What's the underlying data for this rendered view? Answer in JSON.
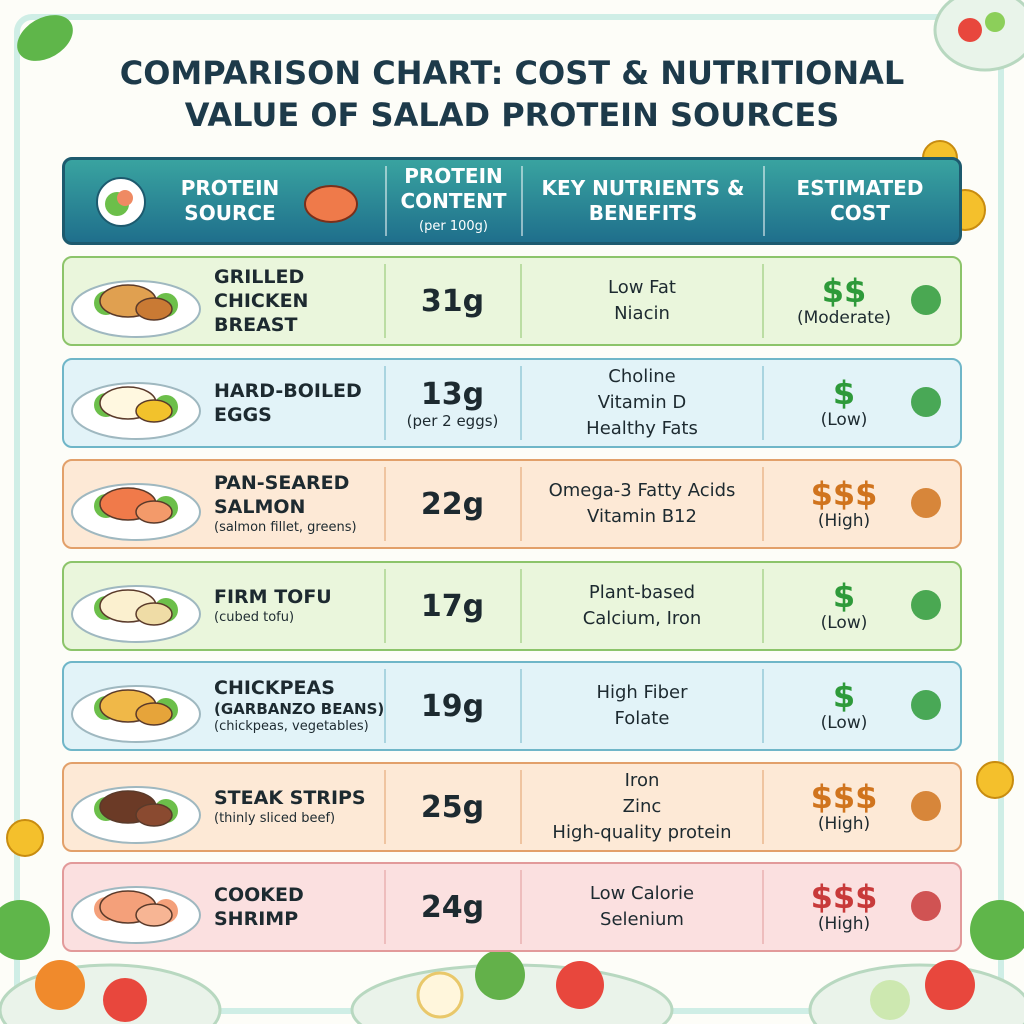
{
  "title": "COMPARISON CHART: COST & NUTRITIONAL VALUE OF SALAD PROTEIN SOURCES",
  "header": {
    "source": "PROTEIN SOURCE",
    "protein": "PROTEIN CONTENT",
    "protein_note": "(per 100g)",
    "nutrients": "KEY NUTRIENTS & BENEFITS",
    "cost": "ESTIMATED COST"
  },
  "rows": [
    {
      "name": "GRILLED CHICKEN BREAST",
      "protein": "31g",
      "nutrients": [
        "Low Fat",
        "Niacin"
      ],
      "cost": "$$",
      "cost_label": "(Moderate)"
    },
    {
      "name": "HARD-BOILED EGGS",
      "protein": "13g",
      "protein_note": "(per 2 eggs)",
      "nutrients": [
        "Choline",
        "Vitamin D",
        "Healthy Fats"
      ],
      "cost": "$",
      "cost_label": "(Low)"
    },
    {
      "name": "PAN-SEARED SALMON",
      "note": "(salmon fillet, greens)",
      "protein": "22g",
      "nutrients": [
        "Omega-3 Fatty Acids",
        "Vitamin B12"
      ],
      "cost": "$$$",
      "cost_label": "(High)"
    },
    {
      "name": "FIRM TOFU",
      "note": "(cubed tofu)",
      "protein": "17g",
      "nutrients": [
        "Plant-based",
        "Calcium, Iron"
      ],
      "cost": "$",
      "cost_label": "(Low)"
    },
    {
      "name": "CHICKPEAS",
      "alt": "(GARBANZO BEANS)",
      "note": "(chickpeas, vegetables)",
      "protein": "19g",
      "nutrients": [
        "High Fiber",
        "Folate"
      ],
      "cost": "$",
      "cost_label": "(Low)"
    },
    {
      "name": "STEAK STRIPS",
      "note": "(thinly sliced beef)",
      "protein": "25g",
      "nutrients": [
        "Iron",
        "Zinc",
        "High-quality protein"
      ],
      "cost": "$$$",
      "cost_label": "(High)"
    },
    {
      "name": "COOKED SHRIMP",
      "protein": "24g",
      "nutrients": [
        "Low Calorie",
        "Selenium"
      ],
      "cost": "$$$",
      "cost_label": "(High)"
    }
  ]
}
